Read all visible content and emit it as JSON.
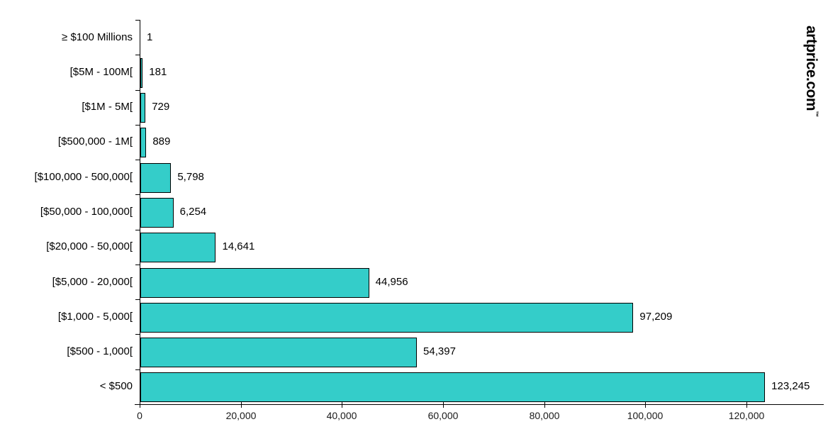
{
  "logo": {
    "text": "artprice.com",
    "trademark": "™"
  },
  "chart_data": {
    "type": "bar",
    "orientation": "horizontal",
    "title": "",
    "xlabel": "",
    "ylabel": "",
    "categories": [
      "≥ $100 Millions",
      "[$5M - 100M[",
      "[$1M - 5M[",
      "[$500,000 - 1M[",
      "[$100,000 - 500,000[",
      "[$50,000 - 100,000[",
      "[$20,000 - 50,000[",
      "[$5,000 - 20,000[",
      "[$1,000 - 5,000[",
      "[$500 - 1,000[",
      "< $500"
    ],
    "values": [
      1,
      181,
      729,
      889,
      5798,
      6254,
      14641,
      44956,
      97209,
      54397,
      123245
    ],
    "value_labels": [
      "1",
      "181",
      "729",
      "889",
      "5,798",
      "6,254",
      "14,641",
      "44,956",
      "97,209",
      "54,397",
      "123,245"
    ],
    "x_ticks": [
      0,
      20000,
      40000,
      60000,
      80000,
      100000,
      120000
    ],
    "x_tick_labels": [
      "0",
      "20,000",
      "40,000",
      "60,000",
      "80,000",
      "100,000",
      "120,000"
    ],
    "xlim": [
      0,
      135000
    ],
    "grid": false,
    "legend": false,
    "bar_color": "#34CDC9",
    "bar_border_color": "#000000",
    "axis_color": "#000000"
  }
}
